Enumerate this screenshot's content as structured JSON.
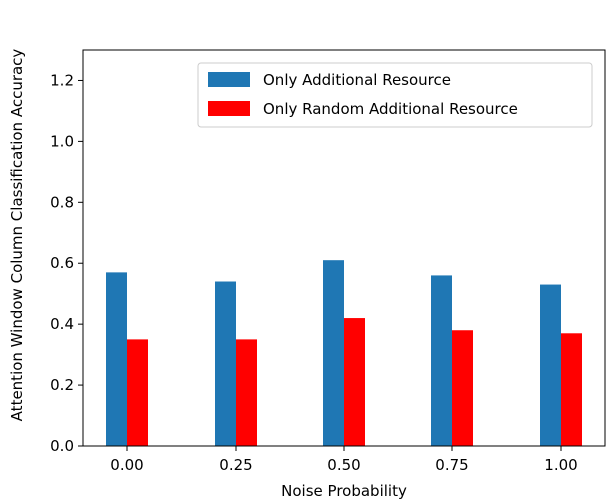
{
  "chart_data": {
    "type": "bar",
    "categories": [
      "0.00",
      "0.25",
      "0.50",
      "0.75",
      "1.00"
    ],
    "series": [
      {
        "name": "Only Additional Resource",
        "color": "#1f77b4",
        "values": [
          0.57,
          0.54,
          0.61,
          0.56,
          0.53
        ]
      },
      {
        "name": "Only Random Additional Resource",
        "color": "#ff0000",
        "values": [
          0.35,
          0.35,
          0.42,
          0.38,
          0.37
        ]
      }
    ],
    "xlabel": "Noise Probability",
    "ylabel": "Attention Window Column Classification Accuracy",
    "ylim": [
      0,
      1.3
    ],
    "yticks": [
      "0.0",
      "0.2",
      "0.4",
      "0.6",
      "0.8",
      "1.0",
      "1.2"
    ],
    "grid": false,
    "legend_position": "top-right"
  }
}
